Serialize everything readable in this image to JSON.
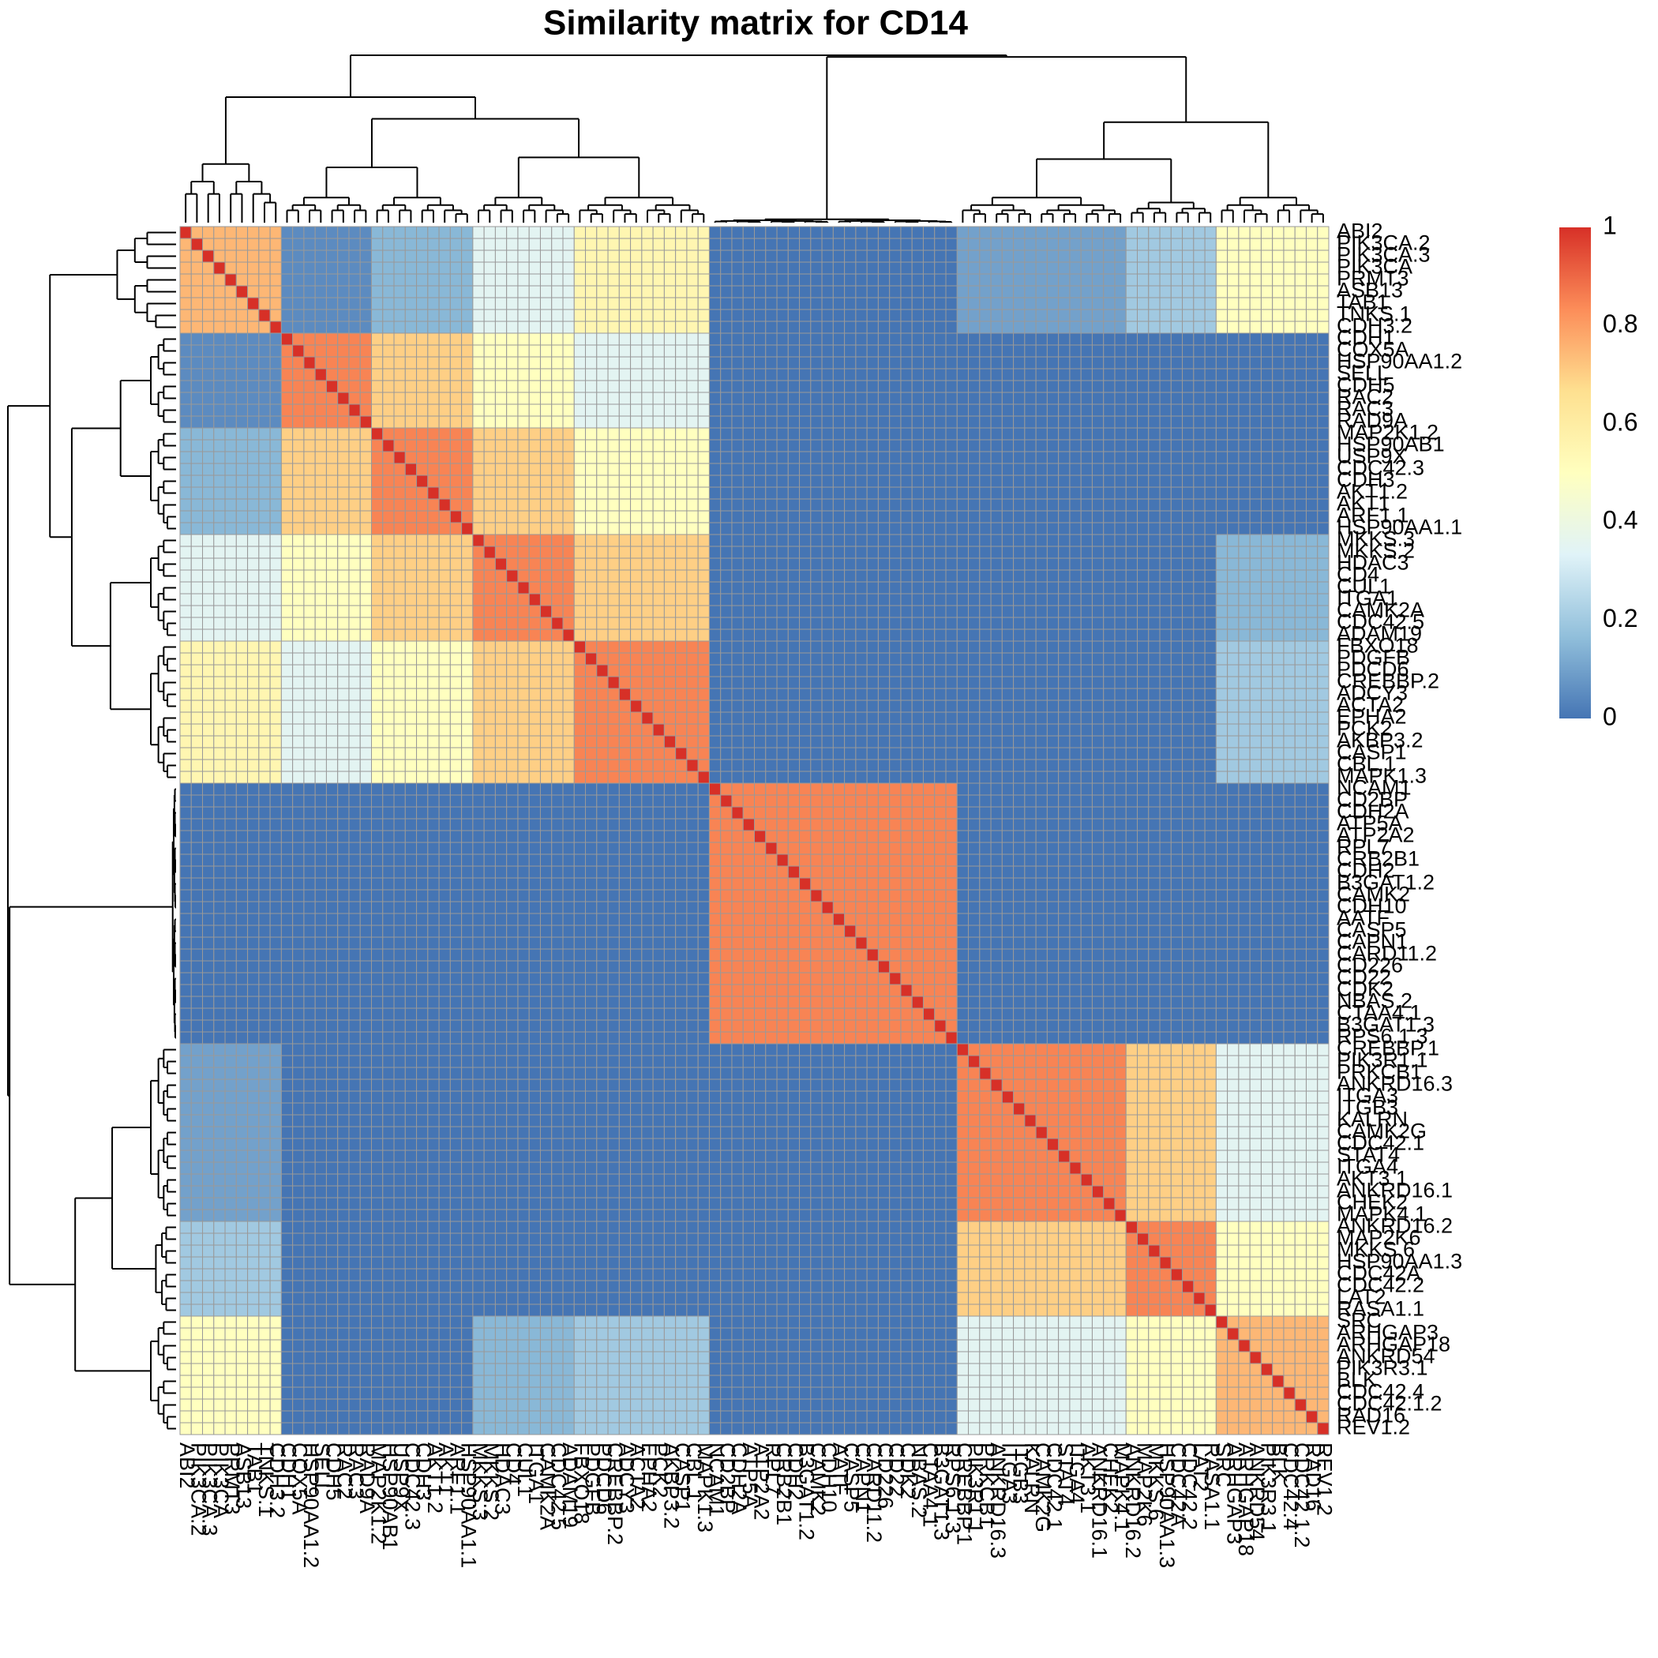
{
  "chart_data": {
    "type": "heatmap",
    "title": "Similarity matrix for CD14",
    "clusters": [
      [
        "ABI2",
        "PIK3CA.2",
        "PIK3CA.3",
        "PIK3CA",
        "PRMT3",
        "ASB13",
        "TAB1",
        "TNKS.1",
        "CDH3.2"
      ],
      [
        "CDH1",
        "COX5A",
        "HSP90AA1.2",
        "SELL",
        "CDH5",
        "RAC2",
        "RAC3",
        "RAD9A"
      ],
      [
        "MAP2K1.2",
        "HSP90AB1",
        "USP9X",
        "CDC42.3",
        "CDH3",
        "AKT1.2",
        "AKT1",
        "ARF1.1",
        "HSP90AA1.1"
      ],
      [
        "MKKS.3",
        "MKKS.2",
        "HDAC3",
        "CD4",
        "CUL1",
        "ITGA1",
        "CAMK2A",
        "CDC42.5",
        "ADAM19"
      ],
      [
        "FBXO18",
        "PDGFB",
        "PDCD6",
        "CREBBP.2",
        "ADCY3",
        "ACTA2",
        "EPHA2",
        "PCK2",
        "AKBP3.2",
        "CASP1",
        "CBL.1",
        "MAPK1.3"
      ],
      [
        "NCAM1",
        "CD2BP",
        "CDH2A",
        "ATP5A",
        "ATP2A2",
        "RPL7",
        "CRB2B1",
        "CDH2",
        "B3GAT1.2",
        "CAMK2",
        "CDH10",
        "AATF",
        "CASP5",
        "CAPN1",
        "CARD11.2",
        "CD226",
        "CD22",
        "CDK2",
        "NBAS.2",
        "CTAA4.1",
        "B3GAT1.3",
        "RPS6.1.3"
      ],
      [
        "CREBBP.1",
        "PIK3R1.1",
        "PRKCB1",
        "ANKRD16.3",
        "ITGA3",
        "ITGB3",
        "KALRN",
        "CAMK2G",
        "CDC42.1",
        "STAT4",
        "ITGA4",
        "AKT3.1",
        "ANKRD16.1",
        "CHEK2",
        "MAPK4.1"
      ],
      [
        "ANKRD16.2",
        "MAP2K6",
        "MKKS.6",
        "HSP90AA1.3",
        "CDC42A",
        "CDC42.2",
        "LAT2",
        "RASA1.1"
      ],
      [
        "SRC",
        "ARHGAP3",
        "ARHGAP18",
        "ANKRD54",
        "PIK3R3.1",
        "BLK",
        "CDC42.4",
        "CDC42.1.2",
        "RAD16",
        "REV1.2"
      ]
    ],
    "values": [
      [
        0.75,
        0.05,
        0.15,
        0.35,
        0.55,
        0,
        0.1,
        0.2,
        0.5
      ],
      [
        0.05,
        0.85,
        0.7,
        0.5,
        0.35,
        0,
        0,
        0,
        0
      ],
      [
        0.15,
        0.7,
        0.85,
        0.7,
        0.5,
        0,
        0,
        0,
        0
      ],
      [
        0.35,
        0.5,
        0.7,
        0.85,
        0.7,
        0,
        0,
        0,
        0.15
      ],
      [
        0.55,
        0.35,
        0.5,
        0.7,
        0.85,
        0,
        0,
        0,
        0.2
      ],
      [
        0,
        0,
        0,
        0,
        0,
        0.85,
        0,
        0,
        0
      ],
      [
        0.1,
        0,
        0,
        0,
        0,
        0,
        0.85,
        0.7,
        0.35
      ],
      [
        0.2,
        0,
        0,
        0,
        0,
        0,
        0.7,
        0.85,
        0.5
      ],
      [
        0.5,
        0,
        0,
        0.15,
        0.2,
        0,
        0.35,
        0.5,
        0.75
      ]
    ],
    "diagonal": 1,
    "colorbar": {
      "lim": [
        0,
        1
      ],
      "ticks": [
        0,
        0.2,
        0.4,
        0.6,
        0.8,
        1
      ],
      "colors": [
        "#4575b4",
        "#91bfdb",
        "#e0f3f8",
        "#ffffbf",
        "#fee090",
        "#fc8d59",
        "#d73027"
      ]
    },
    "cell_border_color": "#999999"
  }
}
